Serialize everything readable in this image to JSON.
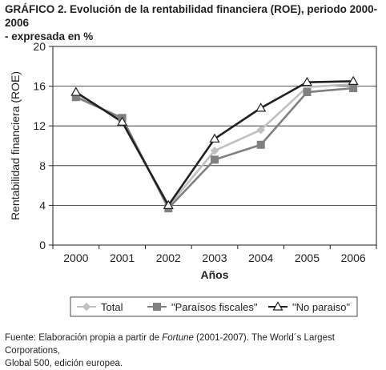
{
  "title": {
    "lead": "GRÁFICO 2.",
    "line1": "Evolución de la rentabilidad financiera (ROE), periodo 2000-2006",
    "line2": "- expresada en %"
  },
  "chart_data": {
    "type": "line",
    "x": [
      "2000",
      "2001",
      "2002",
      "2003",
      "2004",
      "2005",
      "2006"
    ],
    "xlabel": "Años",
    "ylabel": "Rentabilidad financiera (ROE)",
    "ylim": [
      0,
      20
    ],
    "yticks": [
      "0",
      "4",
      "8",
      "12",
      "16",
      "20"
    ],
    "grid": true,
    "legend_position": "bottom",
    "series": [
      {
        "name": "Total",
        "color": "#c0c0c0",
        "marker": "diamond",
        "values": [
          15.2,
          12.6,
          3.9,
          9.5,
          11.6,
          15.9,
          16.2
        ]
      },
      {
        "name": "\"Paraísos fiscales\"",
        "color": "#808080",
        "marker": "square",
        "values": [
          14.9,
          12.8,
          3.7,
          8.6,
          10.1,
          15.4,
          15.8
        ]
      },
      {
        "name": "\"No paraiso\"",
        "color": "#231f20",
        "marker": "triangle",
        "values": [
          15.4,
          12.4,
          4.0,
          10.7,
          13.8,
          16.4,
          16.5
        ]
      }
    ]
  },
  "footer": {
    "prefix": "Fuente: Elaboración propia a partir de ",
    "source": "Fortune",
    "suffix": " (2001-2007). The World´s Largest Corporations,",
    "line2": "Global 500, edición europea."
  }
}
